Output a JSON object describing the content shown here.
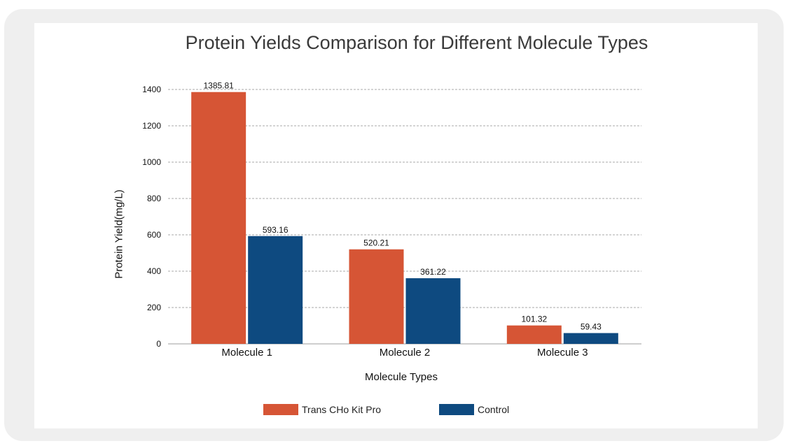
{
  "chart_data": {
    "type": "bar",
    "title": "Protein Yields Comparison for Different Molecule Types",
    "xlabel": "Molecule Types",
    "ylabel": "Protein Yield(mg/L)",
    "categories": [
      "Molecule 1",
      "Molecule 2",
      "Molecule 3"
    ],
    "series": [
      {
        "name": "Trans CHo Kit Pro",
        "color": "#d65535",
        "values": [
          1385.81,
          520.21,
          101.32
        ],
        "labels": [
          "1385.81",
          "520.21",
          "101.32"
        ]
      },
      {
        "name": "Control",
        "color": "#0e4a80",
        "values": [
          593.16,
          361.22,
          59.43
        ],
        "labels": [
          "593.16",
          "361.22",
          "59.43"
        ]
      }
    ],
    "ylim": [
      0,
      1400
    ],
    "yticks": [
      "0",
      "200",
      "400",
      "600",
      "800",
      "1000",
      "1200",
      "1400"
    ],
    "grid": true,
    "legend_position": "bottom"
  }
}
